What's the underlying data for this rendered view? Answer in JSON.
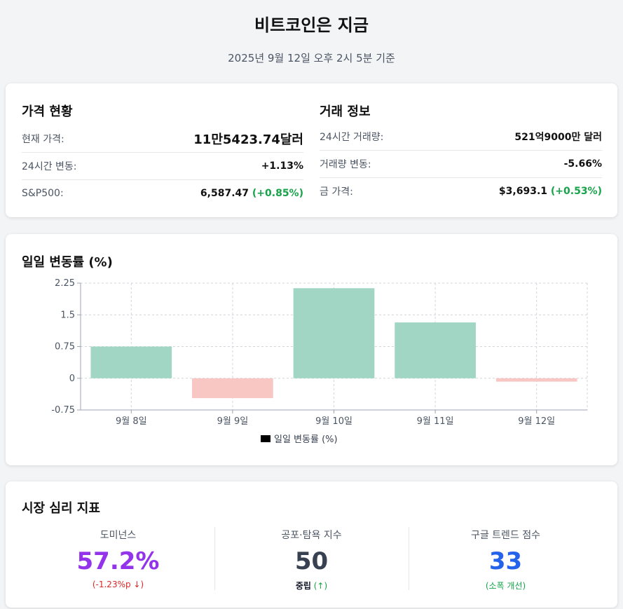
{
  "header": {
    "title": "비트코인은 지금",
    "subtitle": "2025년 9월 12일 오후 2시 5분 기준"
  },
  "price": {
    "heading": "가격 현황",
    "current_label": "현재 가격:",
    "current_value": "11만5423.74달러",
    "change_label": "24시간 변동:",
    "change_value": "+1.13%",
    "sp_label": "S&P500:",
    "sp_value": "6,587.47",
    "sp_change": "(+0.85%)"
  },
  "trade": {
    "heading": "거래 정보",
    "volume_label": "24시간 거래량:",
    "volume_value": "521억9000만 달러",
    "vol_change_label": "거래량 변동:",
    "vol_change_value": "-5.66%",
    "gold_label": "금 가격:",
    "gold_value": "$3,693.1",
    "gold_change": "(+0.53%)"
  },
  "chart_data": {
    "type": "bar",
    "title": "일일 변동률 (%)",
    "categories": [
      "9월 8일",
      "9월 9일",
      "9월 10일",
      "9월 11일",
      "9월 12일"
    ],
    "series": [
      {
        "name": "일일 변동률 (%)",
        "values": [
          0.75,
          -0.47,
          2.13,
          1.32,
          -0.08
        ]
      }
    ],
    "yticks": [
      "-0.75",
      "0",
      "0.75",
      "1.5",
      "2.25"
    ],
    "ylim": [
      -0.75,
      2.25
    ],
    "grid": true,
    "legend": "bottom",
    "colors": {
      "positive": "#a1d6c5",
      "negative": "#f8c7c3",
      "legend_swatch": "#000000"
    }
  },
  "sentiment": {
    "heading": "시장 심리 지표",
    "metrics": [
      {
        "label": "도미넌스",
        "value": "57.2%",
        "sub": "(-1.23%p ↓)",
        "value_color": "#9333ea",
        "sub_color": "#dc2626"
      },
      {
        "label": "공포·탐욕 지수",
        "value": "50",
        "sub": "중립",
        "sub_extra": "(↑)",
        "value_color": "#374151",
        "sub_color": "#111827"
      },
      {
        "label": "구글 트렌드 점수",
        "value": "33",
        "sub": "(소폭 개선)",
        "value_color": "#2563eb",
        "sub_color": "#16a34a"
      }
    ]
  }
}
